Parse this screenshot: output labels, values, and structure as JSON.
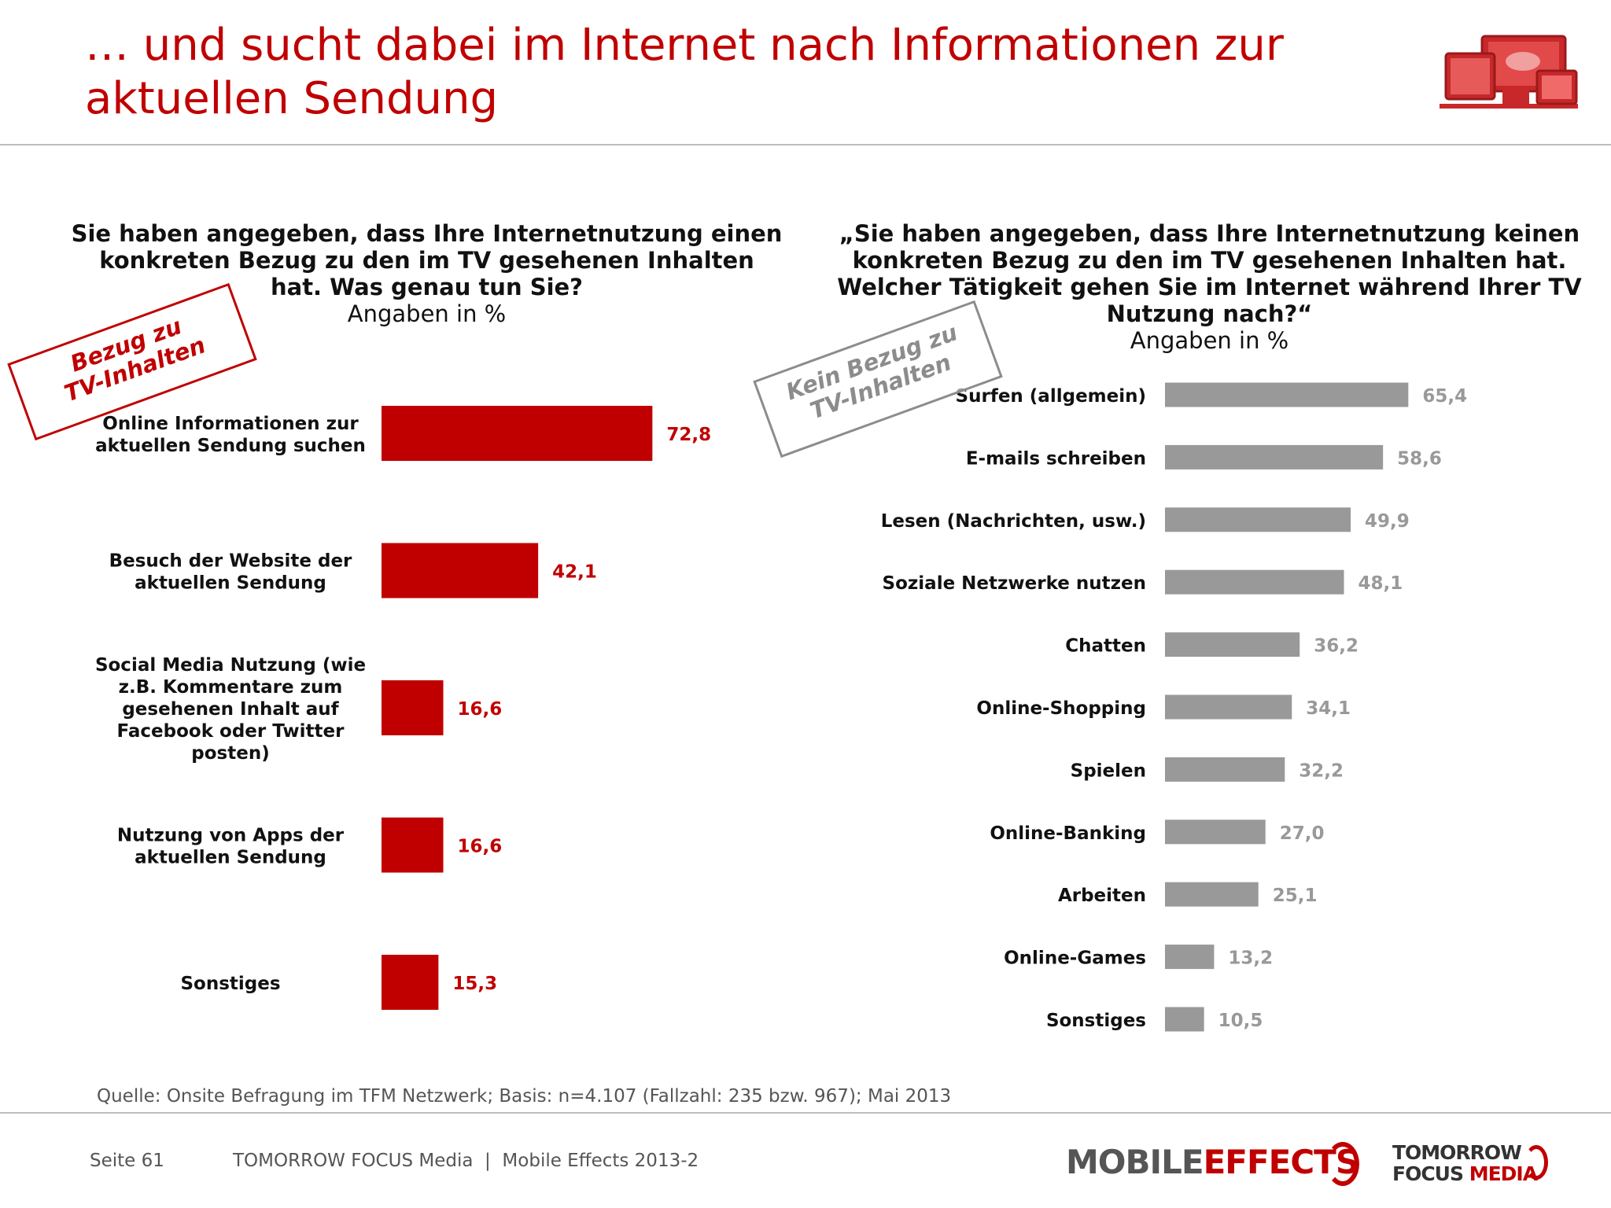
{
  "title": "… und sucht dabei im Internet nach Informationen zur aktuellen Sendung",
  "left": {
    "question": "Sie haben angegeben, dass Ihre Internetnutzung einen konkreten Bezug zu den im TV gesehenen Inhalten hat. Was genau tun Sie?",
    "unit": "Angaben in %",
    "stamp": "Bezug zu\nTV-Inhalten"
  },
  "right": {
    "question": "„Sie haben angegeben, dass Ihre Internetnutzung keinen konkreten Bezug zu den im TV gesehenen Inhalten hat. Welcher Tätigkeit gehen Sie im Internet während Ihrer TV Nutzung nach?“",
    "unit": "Angaben in %",
    "stamp": "Kein Bezug zu\nTV-Inhalten"
  },
  "chart_data": [
    {
      "type": "bar",
      "orientation": "horizontal",
      "categories": [
        "Online Informationen zur aktuellen Sendung suchen",
        "Besuch der Website der aktuellen Sendung",
        "Social Media Nutzung (wie z.B. Kommentare zum gesehenen Inhalt auf Facebook oder Twitter posten)",
        "Nutzung von Apps der aktuellen Sendung",
        "Sonstiges"
      ],
      "values": [
        72.8,
        42.1,
        16.6,
        16.6,
        15.3
      ],
      "value_labels": [
        "72,8",
        "42,1",
        "16,6",
        "16,6",
        "15,3"
      ],
      "color": "#c00000",
      "xlim": [
        0,
        100
      ],
      "grid": false
    },
    {
      "type": "bar",
      "orientation": "horizontal",
      "categories": [
        "Surfen (allgemein)",
        "E-mails schreiben",
        "Lesen (Nachrichten, usw.)",
        "Soziale Netzwerke nutzen",
        "Chatten",
        "Online-Shopping",
        "Spielen",
        "Online-Banking",
        "Arbeiten",
        "Online-Games",
        "Sonstiges"
      ],
      "values": [
        65.4,
        58.6,
        49.9,
        48.1,
        36.2,
        34.1,
        32.2,
        27.0,
        25.1,
        13.2,
        10.5
      ],
      "value_labels": [
        "65,4",
        "58,6",
        "49,9",
        "48,1",
        "36,2",
        "34,1",
        "32,2",
        "27,0",
        "25,1",
        "13,2",
        "10,5"
      ],
      "color": "#999999",
      "xlim": [
        0,
        100
      ],
      "grid": false
    }
  ],
  "source": "Quelle: Onsite Befragung im TFM Netzwerk; Basis: n=4.107 (Fallzahl: 235 bzw. 967); Mai 2013",
  "footer": {
    "page": "Seite 61",
    "text": "TOMORROW FOCUS Media  |  Mobile Effects 2013-2"
  },
  "brand": {
    "mobile_effects_1": "MOBILE",
    "mobile_effects_2": "EFFECTS",
    "tfm_line1": "TOMORROW",
    "tfm_line2a": "FOCUS",
    "tfm_line2b": "MEDIA"
  }
}
